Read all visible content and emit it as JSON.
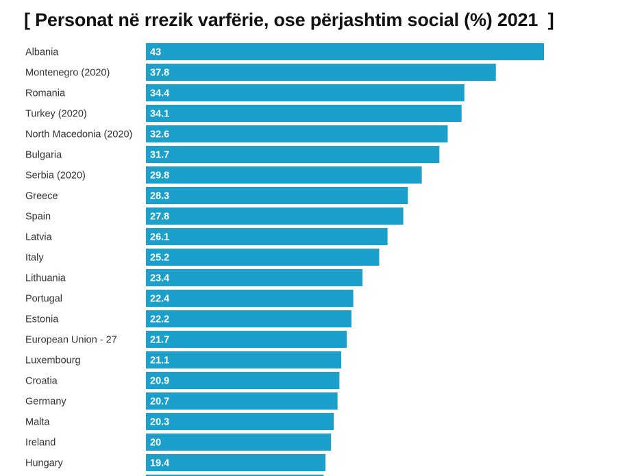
{
  "chart_data": {
    "type": "bar",
    "orientation": "horizontal",
    "title": "[ Personat në rrezik varfërie, ose përjashtim social (%) 2021  ]",
    "xlabel": "",
    "ylabel": "",
    "grid": false,
    "legend": "none",
    "bar_color": "#1ba0cc",
    "label_color": "#ffffff",
    "xlim": [
      0,
      43
    ],
    "categories": [
      "Albania",
      "Montenegro (2020)",
      "Romania",
      "Turkey (2020)",
      "North Macedonia (2020)",
      "Bulgaria",
      "Serbia (2020)",
      "Greece",
      "Spain",
      "Latvia",
      "Italy",
      "Lithuania",
      "Portugal",
      "Estonia",
      "European Union - 27",
      "Luxembourg",
      "Croatia",
      "Germany",
      "Malta",
      "Ireland",
      "Hungary",
      ""
    ],
    "values": [
      43,
      37.8,
      34.4,
      34.1,
      32.6,
      31.7,
      29.8,
      28.3,
      27.8,
      26.1,
      25.2,
      23.4,
      22.4,
      22.2,
      21.7,
      21.1,
      20.9,
      20.7,
      20.3,
      20,
      19.4,
      19.2
    ],
    "value_labels": [
      "43",
      "37.8",
      "34.4",
      "34.1",
      "32.6",
      "31.7",
      "29.8",
      "28.3",
      "27.8",
      "26.1",
      "25.2",
      "23.4",
      "22.4",
      "22.2",
      "21.7",
      "21.1",
      "20.9",
      "20.7",
      "20.3",
      "20",
      "19.4",
      ""
    ]
  }
}
